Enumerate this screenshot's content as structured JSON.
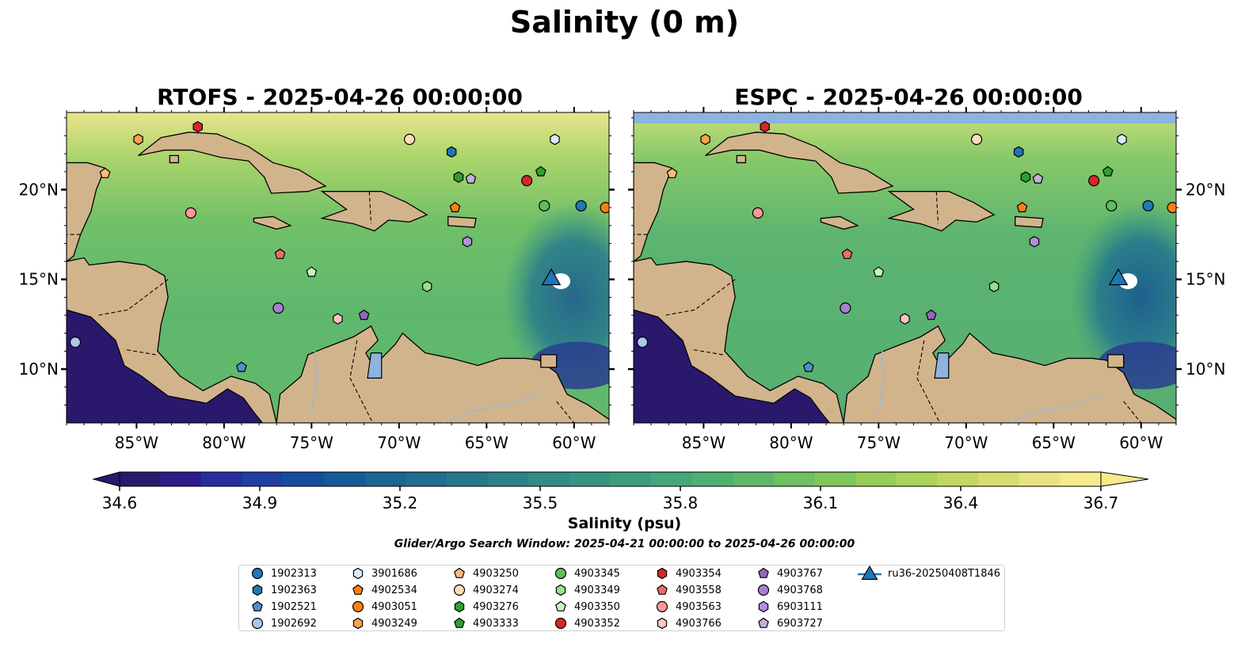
{
  "suptitle": "Salinity (0 m)",
  "panels": [
    {
      "title": "RTOFS - 2025-04-26 00:00:00"
    },
    {
      "title": "ESPC - 2025-04-26 00:00:00"
    }
  ],
  "axes": {
    "x_ticks": [
      "85°W",
      "80°W",
      "75°W",
      "70°W",
      "65°W",
      "60°W"
    ],
    "x_values": [
      -85,
      -80,
      -75,
      -70,
      -65,
      -60
    ],
    "y_ticks": [
      "20°N",
      "15°N",
      "10°N"
    ],
    "y_values": [
      20,
      15,
      10
    ],
    "lon_range": [
      -89,
      -58
    ],
    "lat_range": [
      7,
      24.3
    ]
  },
  "colorbar": {
    "label": "Salinity (psu)",
    "ticks": [
      "34.6",
      "34.9",
      "35.2",
      "35.5",
      "35.8",
      "36.1",
      "36.4",
      "36.7"
    ],
    "range": [
      34.6,
      36.7
    ],
    "extend": "both",
    "colormap": "haline"
  },
  "search_window": "Glider/Argo Search Window: 2025-04-21 00:00:00 to 2025-04-26 00:00:00",
  "colors": {
    "land": "#d2b48c",
    "deep_ocean": "#2a186c",
    "missing_band": "#8fb3e0",
    "lake": "#8fb3e0"
  },
  "legend": [
    {
      "label": "1902313",
      "marker": "circle",
      "color": "#1f77b4"
    },
    {
      "label": "1902363",
      "marker": "hexagon",
      "color": "#1f77b4"
    },
    {
      "label": "1902521",
      "marker": "pentagon",
      "color": "#4f8fc8"
    },
    {
      "label": "1902692",
      "marker": "circle",
      "color": "#aec7e8"
    },
    {
      "label": "3901686",
      "marker": "hexagon",
      "color": "#d6eaf8"
    },
    {
      "label": "4902534",
      "marker": "pentagon",
      "color": "#ff7f0e"
    },
    {
      "label": "4903051",
      "marker": "circle",
      "color": "#ff7f0e"
    },
    {
      "label": "4903249",
      "marker": "hexagon",
      "color": "#ffa04d"
    },
    {
      "label": "4903250",
      "marker": "pentagon",
      "color": "#ffbb78"
    },
    {
      "label": "4903274",
      "marker": "circle",
      "color": "#ffdcb8"
    },
    {
      "label": "4903276",
      "marker": "hexagon",
      "color": "#2ca02c"
    },
    {
      "label": "4903333",
      "marker": "pentagon",
      "color": "#2ca02c"
    },
    {
      "label": "4903345",
      "marker": "circle",
      "color": "#5cbf5c"
    },
    {
      "label": "4903349",
      "marker": "hexagon",
      "color": "#98df8a"
    },
    {
      "label": "4903350",
      "marker": "pentagon",
      "color": "#c7f5c0"
    },
    {
      "label": "4903352",
      "marker": "circle",
      "color": "#d62728"
    },
    {
      "label": "4903354",
      "marker": "hexagon",
      "color": "#d62728"
    },
    {
      "label": "4903558",
      "marker": "pentagon",
      "color": "#f06a6a"
    },
    {
      "label": "4903563",
      "marker": "circle",
      "color": "#ff9896"
    },
    {
      "label": "4903766",
      "marker": "hexagon",
      "color": "#ffc4c2"
    },
    {
      "label": "4903767",
      "marker": "pentagon",
      "color": "#9467bd"
    },
    {
      "label": "4903768",
      "marker": "circle",
      "color": "#a57fd0"
    },
    {
      "label": "6903111",
      "marker": "hexagon",
      "color": "#b48fdc"
    },
    {
      "label": "6903727",
      "marker": "pentagon",
      "color": "#c5b0d5"
    },
    {
      "label": "ru36-20250408T1846",
      "marker": "triangle",
      "color": "#1f77b4"
    }
  ],
  "floats": [
    {
      "id": "4903563",
      "lon": -81.9,
      "lat": 18.7
    },
    {
      "id": "4903354",
      "lon": -81.5,
      "lat": 23.5
    },
    {
      "id": "4903249",
      "lon": -84.9,
      "lat": 22.8
    },
    {
      "id": "4903250",
      "lon": -86.8,
      "lat": 20.9
    },
    {
      "id": "4903274",
      "lon": -69.4,
      "lat": 22.8
    },
    {
      "id": "3901686",
      "lon": -61.1,
      "lat": 22.8
    },
    {
      "id": "1902363",
      "lon": -67.0,
      "lat": 22.1
    },
    {
      "id": "4903276",
      "lon": -66.6,
      "lat": 20.7
    },
    {
      "id": "6903727",
      "lon": -65.9,
      "lat": 20.6
    },
    {
      "id": "4903352",
      "lon": -62.7,
      "lat": 20.5
    },
    {
      "id": "4903333",
      "lon": -61.9,
      "lat": 21.0
    },
    {
      "id": "4902534",
      "lon": -66.8,
      "lat": 19.0
    },
    {
      "id": "4903345",
      "lon": -61.7,
      "lat": 19.1
    },
    {
      "id": "1902313",
      "lon": -59.6,
      "lat": 19.1
    },
    {
      "id": "4903051",
      "lon": -58.2,
      "lat": 19.0
    },
    {
      "id": "6903111",
      "lon": -66.1,
      "lat": 17.1
    },
    {
      "id": "4903558",
      "lon": -76.8,
      "lat": 16.4
    },
    {
      "id": "4903350",
      "lon": -75.0,
      "lat": 15.4
    },
    {
      "id": "4903349",
      "lon": -68.4,
      "lat": 14.6
    },
    {
      "id": "4903768",
      "lon": -76.9,
      "lat": 13.4
    },
    {
      "id": "4903766",
      "lon": -73.5,
      "lat": 12.8
    },
    {
      "id": "4903767",
      "lon": -72.0,
      "lat": 13.0
    },
    {
      "id": "1902692",
      "lon": -88.5,
      "lat": 11.5
    },
    {
      "id": "1902521",
      "lon": -79.0,
      "lat": 10.1
    }
  ],
  "glider": {
    "id": "ru36-20250408T1846",
    "lon": -61.3,
    "lat": 14.9
  }
}
